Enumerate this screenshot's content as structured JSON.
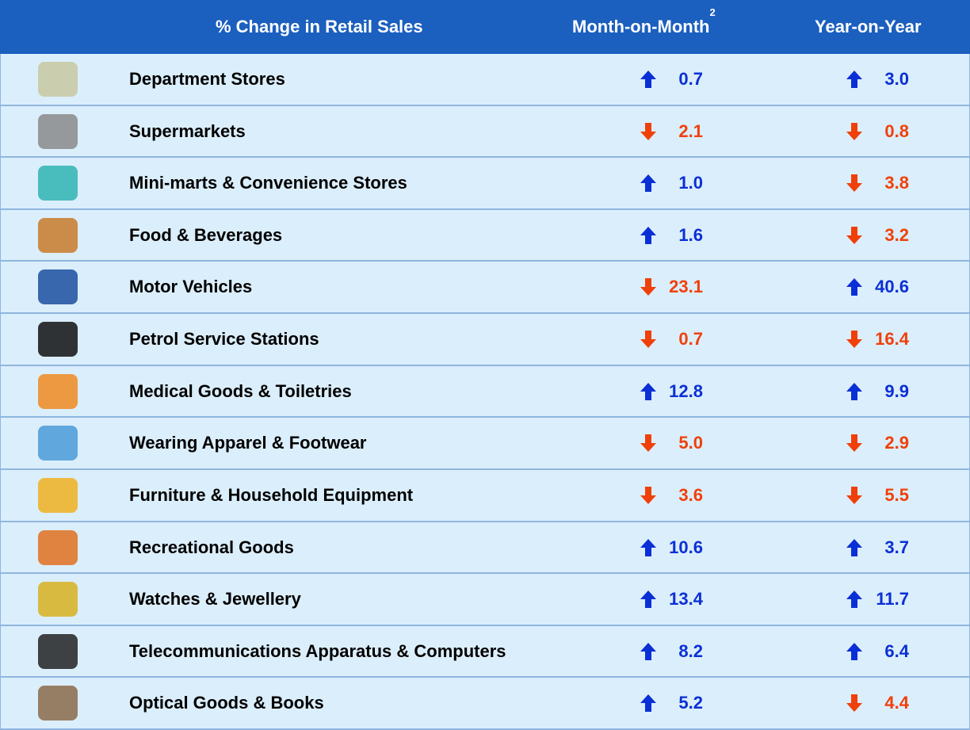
{
  "header": {
    "category": "% Change in Retail Sales",
    "mom": "Month-on-Month",
    "mom_note": "2",
    "yoy": "Year-on-Year"
  },
  "table": {
    "rows": [
      {
        "name": "Department Stores",
        "mom": "0.7",
        "mom_dir": "up",
        "yoy": "3.0",
        "yoy_dir": "up"
      },
      {
        "name": "Supermarkets",
        "mom": "2.1",
        "mom_dir": "down",
        "yoy": "0.8",
        "yoy_dir": "down"
      },
      {
        "name": "Mini-marts & Convenience Stores",
        "mom": "1.0",
        "mom_dir": "up",
        "yoy": "3.8",
        "yoy_dir": "down"
      },
      {
        "name": "Food & Beverages",
        "mom": "1.6",
        "mom_dir": "up",
        "yoy": "3.2",
        "yoy_dir": "down"
      },
      {
        "name": "Motor Vehicles",
        "mom": "23.1",
        "mom_dir": "down",
        "yoy": "40.6",
        "yoy_dir": "up"
      },
      {
        "name": "Petrol Service Stations",
        "mom": "0.7",
        "mom_dir": "down",
        "yoy": "16.4",
        "yoy_dir": "down"
      },
      {
        "name": "Medical Goods & Toiletries",
        "mom": "12.8",
        "mom_dir": "up",
        "yoy": "9.9",
        "yoy_dir": "up"
      },
      {
        "name": "Wearing Apparel & Footwear",
        "mom": "5.0",
        "mom_dir": "down",
        "yoy": "2.9",
        "yoy_dir": "down"
      },
      {
        "name": "Furniture & Household Equipment",
        "mom": "3.6",
        "mom_dir": "down",
        "yoy": "5.5",
        "yoy_dir": "down"
      },
      {
        "name": "Recreational Goods",
        "mom": "10.6",
        "mom_dir": "up",
        "yoy": "3.7",
        "yoy_dir": "up"
      },
      {
        "name": "Watches & Jewellery",
        "mom": "13.4",
        "mom_dir": "up",
        "yoy": "11.7",
        "yoy_dir": "up"
      },
      {
        "name": "Telecommunications Apparatus & Computers",
        "mom": "8.2",
        "mom_dir": "up",
        "yoy": "6.4",
        "yoy_dir": "up"
      },
      {
        "name": "Optical Goods & Books",
        "mom": "5.2",
        "mom_dir": "up",
        "yoy": "4.4",
        "yoy_dir": "down"
      }
    ]
  }
}
